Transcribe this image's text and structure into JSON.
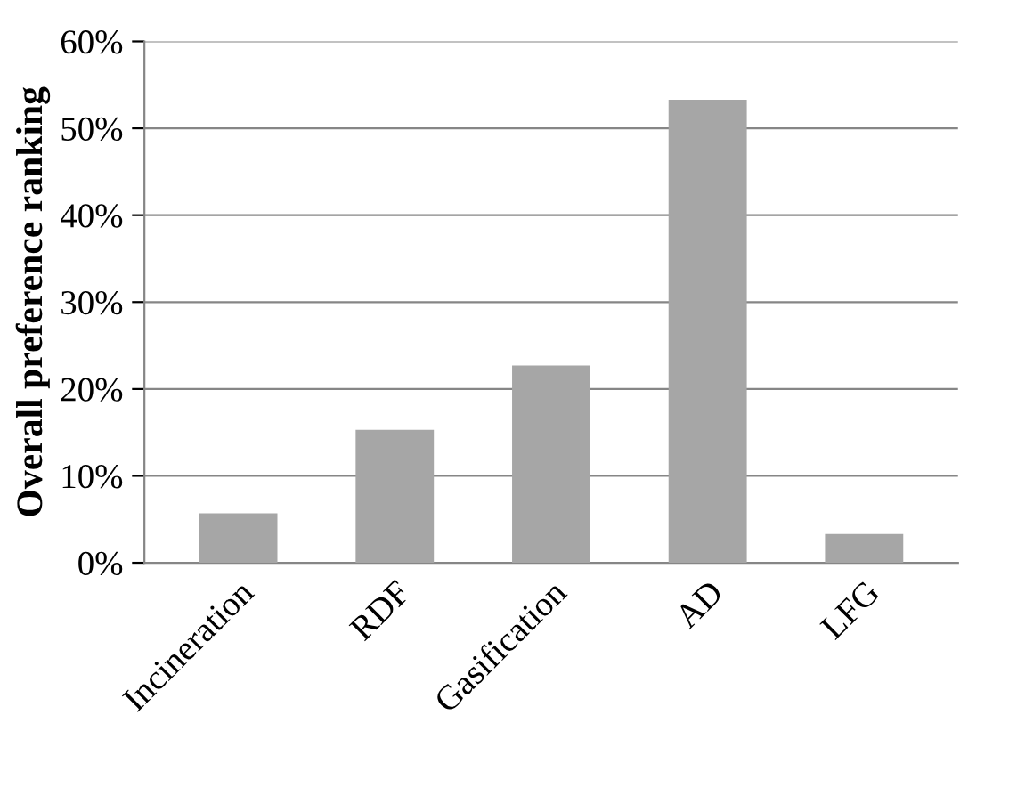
{
  "chart_data": {
    "type": "bar",
    "ylabel": "Overall preference ranking",
    "categories": [
      "Incineration",
      "RDF",
      "Gasification",
      "AD",
      "LFG"
    ],
    "values": [
      5.7,
      15.3,
      22.7,
      53.3,
      3.3
    ],
    "color": "#a6a6a6",
    "ylim": [
      0,
      60
    ],
    "yticks": [
      {
        "value": 0,
        "label": "0%"
      },
      {
        "value": 10,
        "label": "10%"
      },
      {
        "value": 20,
        "label": "20%"
      },
      {
        "value": 30,
        "label": "30%"
      },
      {
        "value": 40,
        "label": "40%"
      },
      {
        "value": 50,
        "label": "50%"
      },
      {
        "value": 60,
        "label": "60%"
      }
    ],
    "grid": "y"
  }
}
